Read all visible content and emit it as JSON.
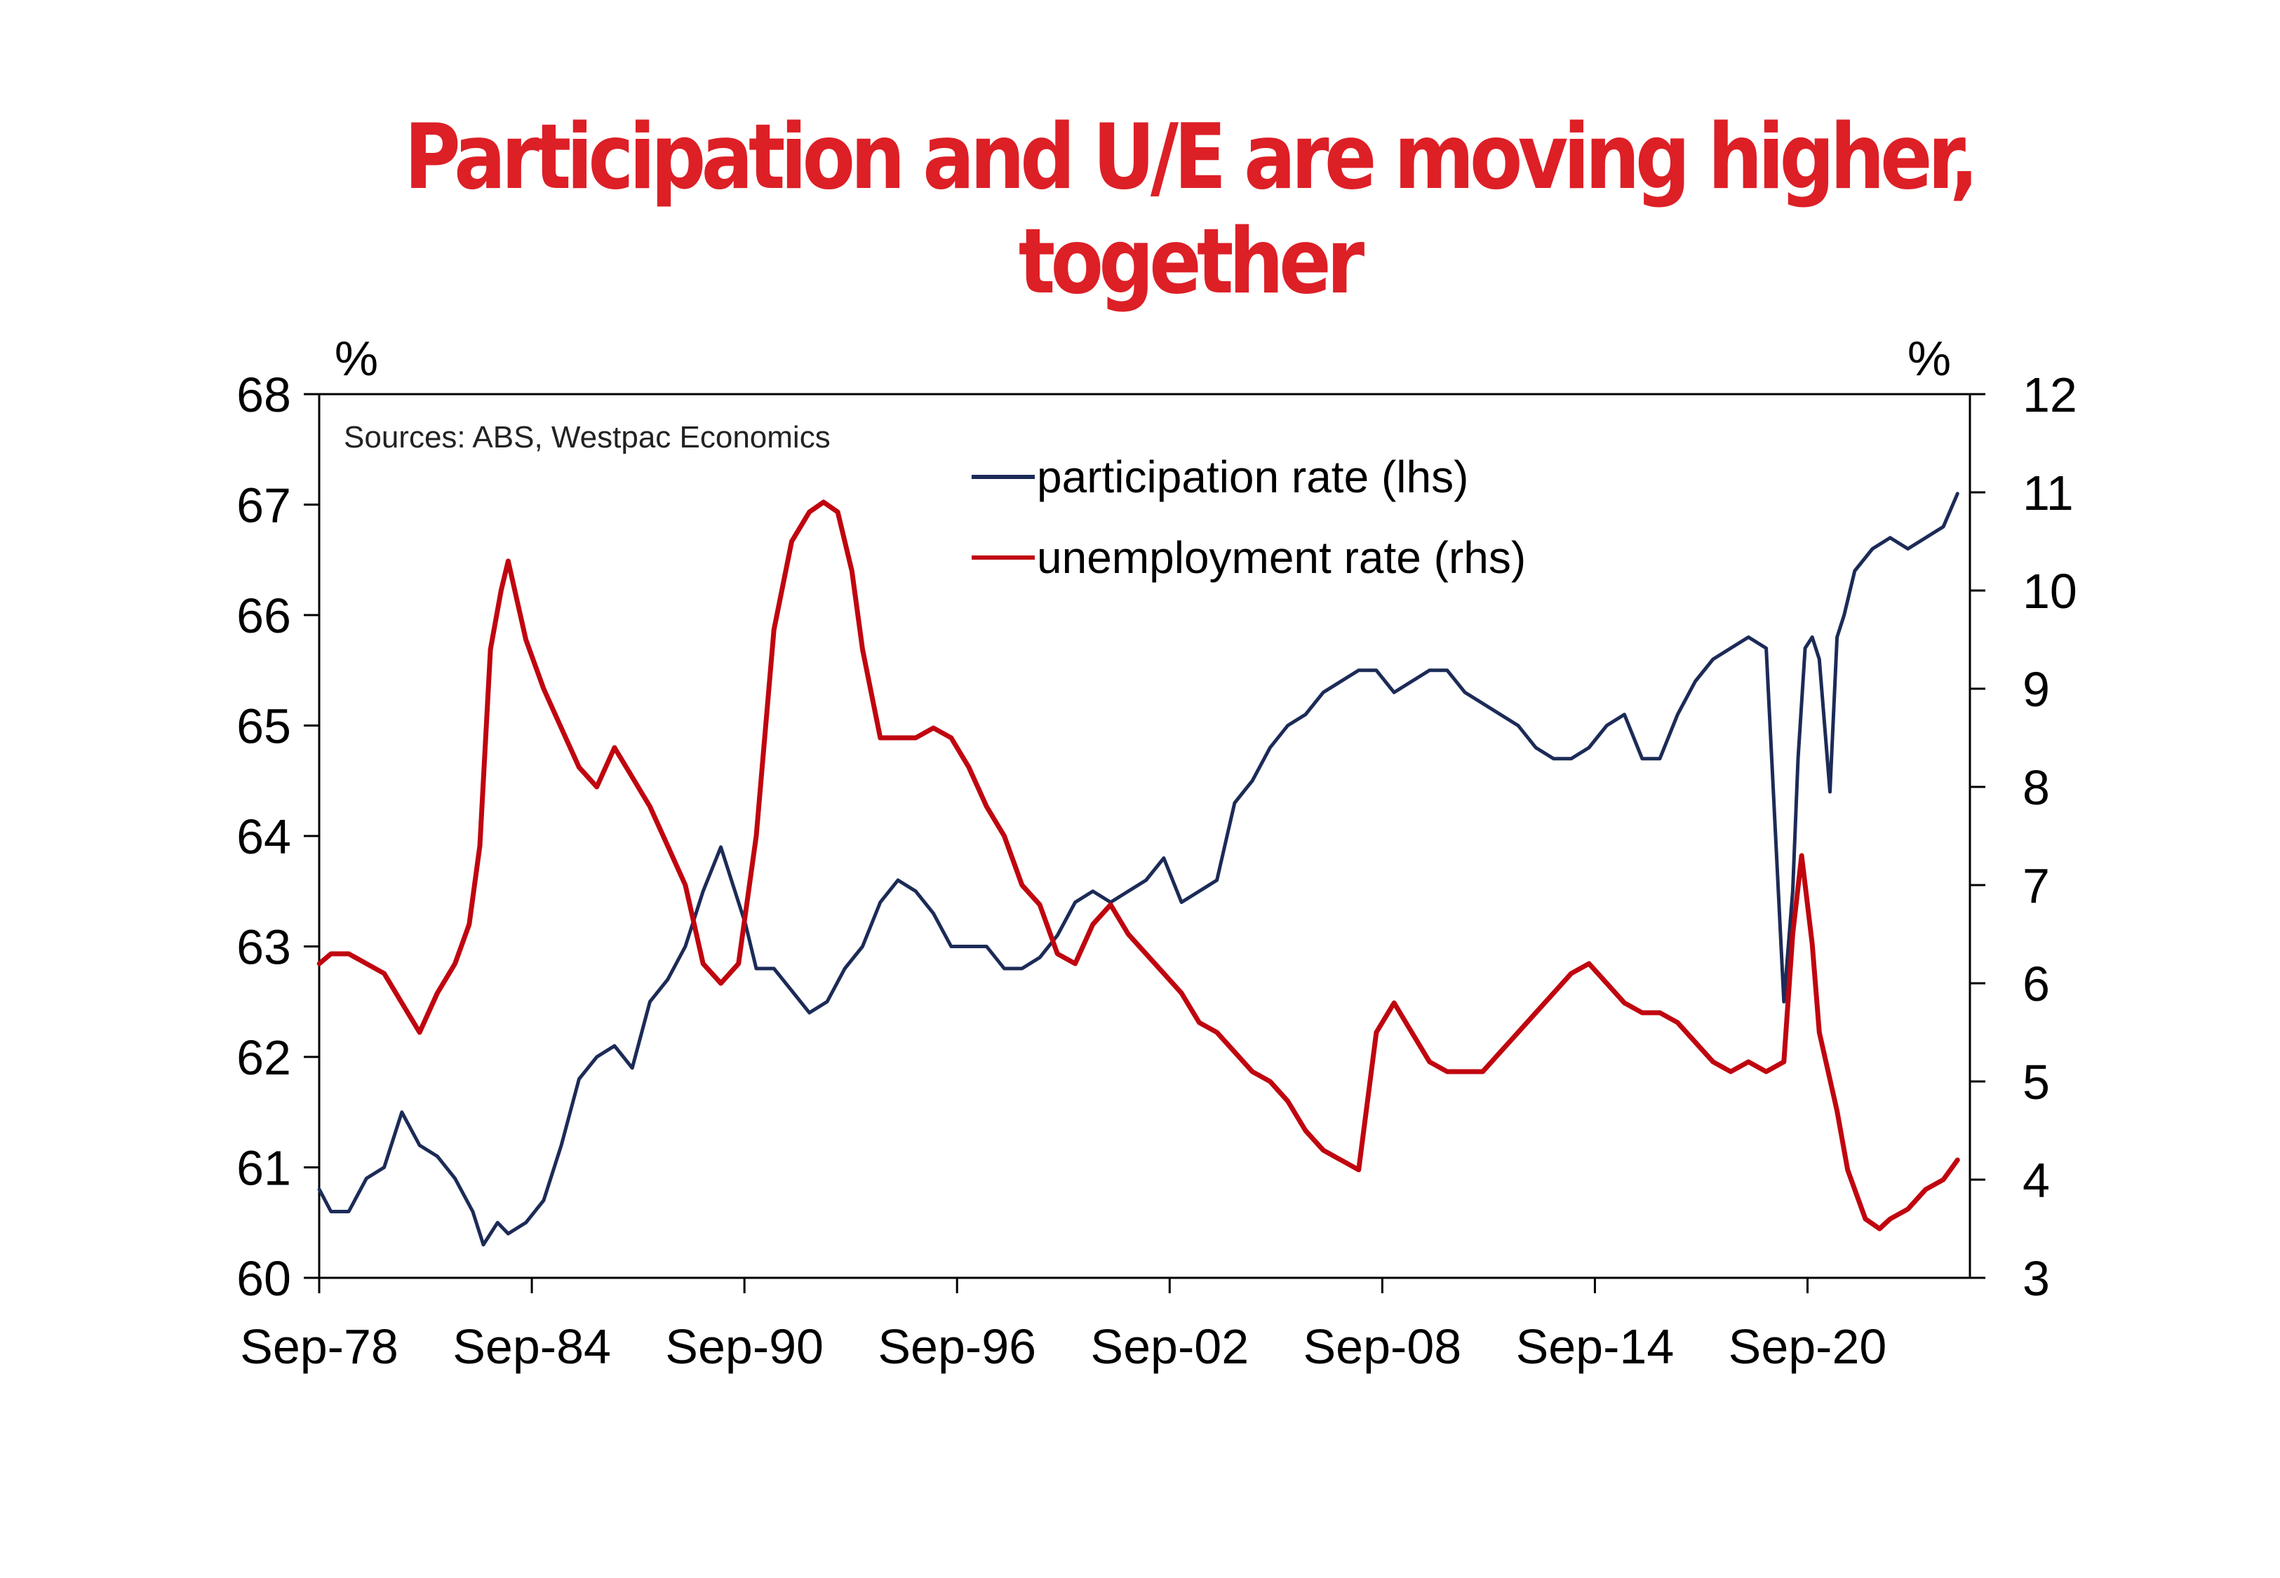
{
  "chart_data": {
    "type": "line",
    "title": "Participation and U/E are moving higher, together",
    "source": "Sources: ABS, Westpac Economics",
    "left_axis_unit": "%",
    "right_axis_unit": "%",
    "x_ticks": [
      "Sep-78",
      "Sep-84",
      "Sep-90",
      "Sep-96",
      "Sep-02",
      "Sep-08",
      "Sep-14",
      "Sep-20"
    ],
    "left_ticks": [
      "60",
      "61",
      "62",
      "63",
      "64",
      "65",
      "66",
      "67",
      "68"
    ],
    "right_ticks": [
      "3",
      "4",
      "5",
      "6",
      "7",
      "8",
      "9",
      "10",
      "11",
      "12"
    ],
    "xlim": [
      1978.667,
      2025.25
    ],
    "ylim_left": [
      60,
      68
    ],
    "ylim_right": [
      3,
      12
    ],
    "grid": false,
    "legend_position": "top-center",
    "series": [
      {
        "name": "participation rate (lhs)",
        "axis": "left",
        "color": "#1c2b57",
        "x": [
          1978.67,
          1979.0,
          1979.5,
          1980.0,
          1980.5,
          1981.0,
          1981.5,
          1982.0,
          1982.5,
          1983.0,
          1983.3,
          1983.7,
          1984.0,
          1984.5,
          1985.0,
          1985.5,
          1986.0,
          1986.5,
          1987.0,
          1987.5,
          1988.0,
          1988.5,
          1989.0,
          1989.5,
          1990.0,
          1990.3,
          1990.7,
          1991.0,
          1991.5,
          1992.0,
          1992.5,
          1993.0,
          1993.5,
          1994.0,
          1994.5,
          1995.0,
          1995.5,
          1996.0,
          1996.5,
          1997.0,
          1997.5,
          1998.0,
          1998.5,
          1999.0,
          1999.5,
          2000.0,
          2000.5,
          2001.0,
          2001.5,
          2002.0,
          2002.5,
          2003.0,
          2003.5,
          2004.0,
          2004.5,
          2005.0,
          2005.5,
          2006.0,
          2006.5,
          2007.0,
          2007.5,
          2008.0,
          2008.5,
          2009.0,
          2009.5,
          2010.0,
          2010.5,
          2011.0,
          2011.5,
          2012.0,
          2012.5,
          2013.0,
          2013.5,
          2014.0,
          2014.5,
          2015.0,
          2015.5,
          2016.0,
          2016.5,
          2017.0,
          2017.5,
          2018.0,
          2018.5,
          2019.0,
          2019.5,
          2020.0,
          2020.25,
          2020.4,
          2020.6,
          2020.8,
          2021.0,
          2021.3,
          2021.5,
          2021.7,
          2022.0,
          2022.5,
          2023.0,
          2023.5,
          2024.0,
          2024.5,
          2024.9
        ],
        "y": [
          60.8,
          60.6,
          60.6,
          60.9,
          61.0,
          61.5,
          61.2,
          61.1,
          60.9,
          60.6,
          60.3,
          60.5,
          60.4,
          60.5,
          60.7,
          61.2,
          61.8,
          62.0,
          62.1,
          61.9,
          62.5,
          62.7,
          63.0,
          63.5,
          63.9,
          63.6,
          63.2,
          62.8,
          62.8,
          62.6,
          62.4,
          62.5,
          62.8,
          63.0,
          63.4,
          63.6,
          63.5,
          63.3,
          63.0,
          63.0,
          63.0,
          62.8,
          62.8,
          62.9,
          63.1,
          63.4,
          63.5,
          63.4,
          63.5,
          63.6,
          63.8,
          63.4,
          63.5,
          63.6,
          64.3,
          64.5,
          64.8,
          65.0,
          65.1,
          65.3,
          65.4,
          65.5,
          65.5,
          65.3,
          65.4,
          65.5,
          65.5,
          65.3,
          65.2,
          65.1,
          65.0,
          64.8,
          64.7,
          64.7,
          64.8,
          65.0,
          65.1,
          64.7,
          64.7,
          65.1,
          65.4,
          65.6,
          65.7,
          65.8,
          65.7,
          62.5,
          63.5,
          64.7,
          65.7,
          65.8,
          65.6,
          64.4,
          65.8,
          66.0,
          66.4,
          66.6,
          66.7,
          66.6,
          66.7,
          66.8,
          67.1
        ]
      },
      {
        "name": "unemployment rate (rhs)",
        "axis": "right",
        "color": "#c0050f",
        "x": [
          1978.67,
          1979.0,
          1979.5,
          1980.0,
          1980.5,
          1981.0,
          1981.5,
          1982.0,
          1982.5,
          1982.9,
          1983.2,
          1983.5,
          1983.8,
          1984.0,
          1984.5,
          1985.0,
          1985.5,
          1986.0,
          1986.5,
          1987.0,
          1987.5,
          1988.0,
          1988.5,
          1989.0,
          1989.5,
          1990.0,
          1990.5,
          1991.0,
          1991.5,
          1992.0,
          1992.5,
          1992.9,
          1993.3,
          1993.7,
          1994.0,
          1994.5,
          1995.0,
          1995.5,
          1996.0,
          1996.5,
          1997.0,
          1997.5,
          1998.0,
          1998.5,
          1999.0,
          1999.5,
          2000.0,
          2000.5,
          2001.0,
          2001.5,
          2002.0,
          2002.5,
          2003.0,
          2003.5,
          2004.0,
          2004.5,
          2005.0,
          2005.5,
          2006.0,
          2006.5,
          2007.0,
          2007.5,
          2008.0,
          2008.5,
          2009.0,
          2009.5,
          2010.0,
          2010.5,
          2011.0,
          2011.5,
          2012.0,
          2012.5,
          2013.0,
          2013.5,
          2014.0,
          2014.5,
          2015.0,
          2015.5,
          2016.0,
          2016.5,
          2017.0,
          2017.5,
          2018.0,
          2018.5,
          2019.0,
          2019.5,
          2020.0,
          2020.25,
          2020.5,
          2020.8,
          2021.0,
          2021.5,
          2021.8,
          2022.0,
          2022.3,
          2022.7,
          2023.0,
          2023.5,
          2024.0,
          2024.5,
          2024.9
        ],
        "y": [
          6.2,
          6.3,
          6.3,
          6.2,
          6.1,
          5.8,
          5.5,
          5.9,
          6.2,
          6.6,
          7.4,
          9.4,
          10.0,
          10.3,
          9.5,
          9.0,
          8.6,
          8.2,
          8.0,
          8.4,
          8.1,
          7.8,
          7.4,
          7.0,
          6.2,
          6.0,
          6.2,
          7.5,
          9.6,
          10.5,
          10.8,
          10.9,
          10.8,
          10.2,
          9.4,
          8.5,
          8.5,
          8.5,
          8.6,
          8.5,
          8.2,
          7.8,
          7.5,
          7.0,
          6.8,
          6.3,
          6.2,
          6.6,
          6.8,
          6.5,
          6.3,
          6.1,
          5.9,
          5.6,
          5.5,
          5.3,
          5.1,
          5.0,
          4.8,
          4.5,
          4.3,
          4.2,
          4.1,
          5.5,
          5.8,
          5.5,
          5.2,
          5.1,
          5.1,
          5.1,
          5.3,
          5.5,
          5.7,
          5.9,
          6.1,
          6.2,
          6.0,
          5.8,
          5.7,
          5.7,
          5.6,
          5.4,
          5.2,
          5.1,
          5.2,
          5.1,
          5.2,
          6.5,
          7.3,
          6.4,
          5.5,
          4.7,
          4.1,
          3.9,
          3.6,
          3.5,
          3.6,
          3.7,
          3.9,
          4.0,
          4.2
        ]
      }
    ]
  }
}
